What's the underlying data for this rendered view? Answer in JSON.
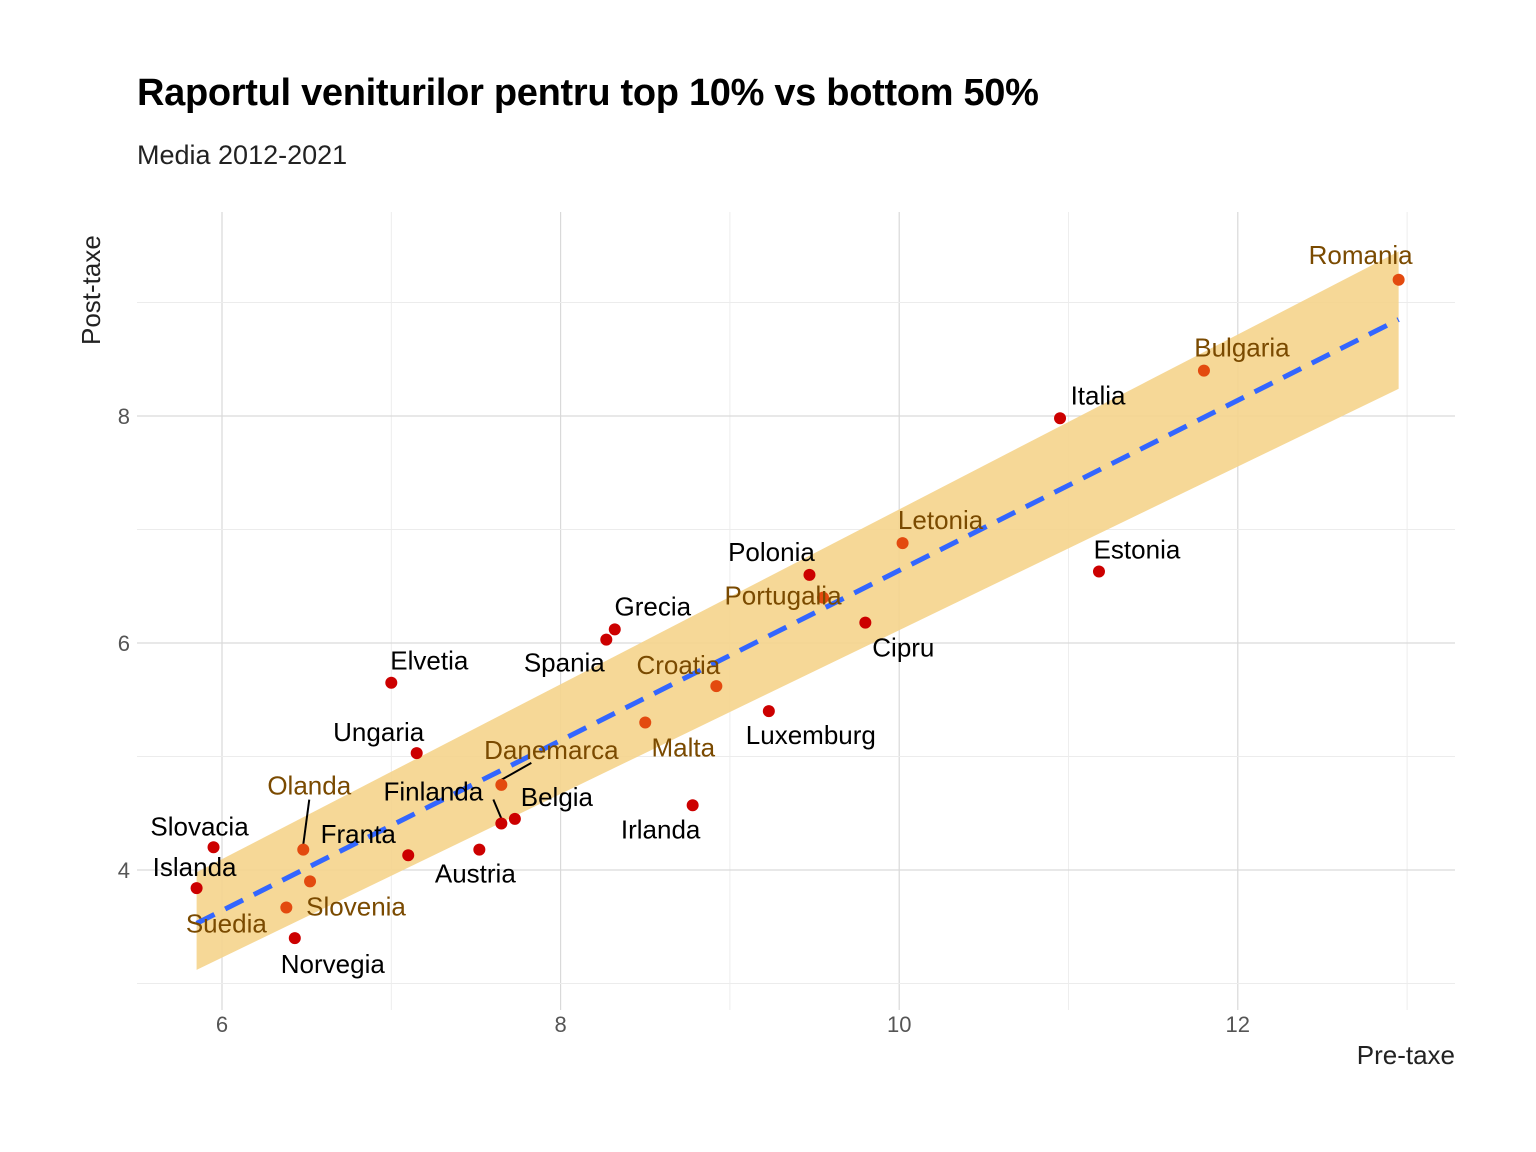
{
  "chart_data": {
    "type": "scatter",
    "title": "Raportul veniturilor pentru top 10% vs bottom 50%",
    "subtitle": "Media 2012-2021",
    "xlabel": "Pre-taxe",
    "ylabel": "Post-taxe",
    "xlim": [
      5.5,
      13.3
    ],
    "ylim": [
      2.75,
      9.6
    ],
    "x_ticks": [
      6,
      8,
      10,
      12
    ],
    "y_ticks": [
      4,
      6,
      8
    ],
    "grid": true,
    "trend": {
      "type": "linear",
      "style": "dashed",
      "color": "#3366ff",
      "x_start": 5.85,
      "y_start": 3.53,
      "x_end": 12.95,
      "y_end": 8.85
    },
    "confidence_band": {
      "color": "#f5d48c",
      "upper": [
        [
          5.85,
          3.98
        ],
        [
          12.95,
          9.45
        ]
      ],
      "lower": [
        [
          5.85,
          3.12
        ],
        [
          12.95,
          8.24
        ]
      ]
    },
    "colors": {
      "outside_band": "#cc0000",
      "inside_band": "#e34a0f",
      "label_outside": "#000000",
      "label_inside": "#7a4a00"
    },
    "points": [
      {
        "name": "Romania",
        "x": 12.95,
        "y": 9.2,
        "inside": true
      },
      {
        "name": "Bulgaria",
        "x": 11.8,
        "y": 8.4,
        "inside": true
      },
      {
        "name": "Italia",
        "x": 10.95,
        "y": 7.98,
        "inside": false
      },
      {
        "name": "Estonia",
        "x": 11.18,
        "y": 6.63,
        "inside": false
      },
      {
        "name": "Letonia",
        "x": 10.02,
        "y": 6.88,
        "inside": true
      },
      {
        "name": "Polonia",
        "x": 9.47,
        "y": 6.6,
        "inside": false
      },
      {
        "name": "Portugalia",
        "x": 9.55,
        "y": 6.4,
        "inside": true
      },
      {
        "name": "Cipru",
        "x": 9.8,
        "y": 6.18,
        "inside": false
      },
      {
        "name": "Grecia",
        "x": 8.32,
        "y": 6.12,
        "inside": false
      },
      {
        "name": "Spania",
        "x": 8.27,
        "y": 6.03,
        "inside": false
      },
      {
        "name": "Croatia",
        "x": 8.92,
        "y": 5.62,
        "inside": true
      },
      {
        "name": "Luxemburg",
        "x": 9.23,
        "y": 5.4,
        "inside": false
      },
      {
        "name": "Malta",
        "x": 8.5,
        "y": 5.3,
        "inside": true
      },
      {
        "name": "Elvetia",
        "x": 7.0,
        "y": 5.65,
        "inside": false
      },
      {
        "name": "Ungaria",
        "x": 7.15,
        "y": 5.03,
        "inside": false
      },
      {
        "name": "Danemarca",
        "x": 7.65,
        "y": 4.75,
        "inside": true
      },
      {
        "name": "Irlanda",
        "x": 8.78,
        "y": 4.57,
        "inside": false
      },
      {
        "name": "Belgia",
        "x": 7.73,
        "y": 4.45,
        "inside": false
      },
      {
        "name": "Finlanda",
        "x": 7.65,
        "y": 4.41,
        "inside": false
      },
      {
        "name": "Austria",
        "x": 7.52,
        "y": 4.18,
        "inside": false
      },
      {
        "name": "Franta",
        "x": 7.1,
        "y": 4.13,
        "inside": false
      },
      {
        "name": "Olanda",
        "x": 6.48,
        "y": 4.18,
        "inside": true
      },
      {
        "name": "Slovacia",
        "x": 5.95,
        "y": 4.2,
        "inside": false
      },
      {
        "name": "Slovenia",
        "x": 6.52,
        "y": 3.9,
        "inside": true
      },
      {
        "name": "Islanda",
        "x": 5.85,
        "y": 3.84,
        "inside": false
      },
      {
        "name": "Suedia",
        "x": 6.38,
        "y": 3.67,
        "inside": true
      },
      {
        "name": "Norvegia",
        "x": 6.43,
        "y": 3.4,
        "inside": false
      }
    ]
  }
}
